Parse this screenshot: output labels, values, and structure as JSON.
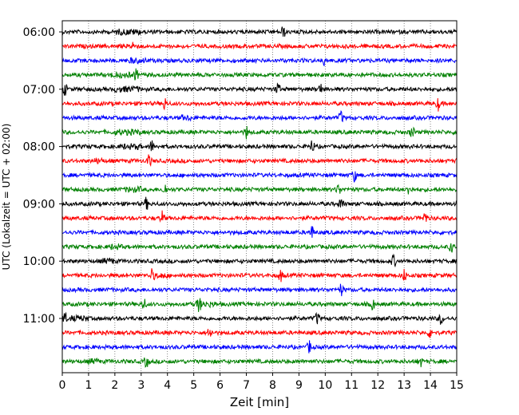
{
  "chart_data": {
    "type": "line",
    "title": "",
    "xlabel": "Zeit  [min]",
    "ylabel": "UTC (Lokalzeit = UTC + 02:00)",
    "xlim": [
      0,
      15
    ],
    "x_ticks": [
      "0",
      "1",
      "2",
      "3",
      "4",
      "5",
      "6",
      "7",
      "8",
      "9",
      "10",
      "11",
      "12",
      "13",
      "14",
      "15"
    ],
    "y_ticks": [
      "06:00",
      "07:00",
      "08:00",
      "09:00",
      "10:00",
      "11:00"
    ],
    "grid": "vertical dotted lines at each minute",
    "trace_interval_min": 15,
    "start_time": "06:00",
    "color_cycle": [
      "#000000",
      "#ff0000",
      "#0000ff",
      "#008000"
    ],
    "traces": [
      {
        "label": "06:00",
        "events": [
          8.4
        ],
        "noisy": [
          [
            2.0,
            3.0
          ]
        ]
      },
      {
        "label": "06:15",
        "events": [
          2.7
        ],
        "noisy": []
      },
      {
        "label": "06:30",
        "events": [
          10.0
        ],
        "noisy": [
          [
            2.5,
            3.2
          ]
        ]
      },
      {
        "label": "06:45",
        "events": [
          2.8
        ],
        "noisy": [
          [
            1.8,
            2.6
          ]
        ]
      },
      {
        "label": "07:00",
        "events": [
          0.1,
          8.2,
          9.8
        ],
        "noisy": [
          [
            2.0,
            3.0
          ]
        ]
      },
      {
        "label": "07:15",
        "events": [
          3.9,
          14.3
        ],
        "noisy": []
      },
      {
        "label": "07:30",
        "events": [
          10.6
        ],
        "noisy": [
          [
            4.5,
            4.9
          ]
        ]
      },
      {
        "label": "07:45",
        "events": [
          7.0,
          13.3
        ],
        "noisy": [
          [
            2.0,
            3.0
          ]
        ]
      },
      {
        "label": "08:00",
        "events": [
          3.4,
          9.5
        ],
        "noisy": [
          [
            2.2,
            3.0
          ]
        ]
      },
      {
        "label": "08:15",
        "events": [
          3.3
        ],
        "noisy": [
          [
            1.2,
            1.6
          ]
        ]
      },
      {
        "label": "08:30",
        "events": [
          11.1
        ],
        "noisy": []
      },
      {
        "label": "08:45",
        "events": [
          3.9,
          10.5,
          13.2
        ],
        "noisy": [
          [
            2.4,
            3.0
          ]
        ]
      },
      {
        "label": "09:00",
        "events": [
          3.2,
          10.6
        ],
        "noisy": []
      },
      {
        "label": "09:15",
        "events": [
          3.8,
          13.8
        ],
        "noisy": []
      },
      {
        "label": "09:30",
        "events": [
          9.5
        ],
        "noisy": []
      },
      {
        "label": "09:45",
        "events": [
          14.8
        ],
        "noisy": [
          [
            1.8,
            2.3
          ]
        ]
      },
      {
        "label": "10:00",
        "events": [
          12.6
        ],
        "noisy": [
          [
            1.5,
            2.0
          ]
        ]
      },
      {
        "label": "10:15",
        "events": [
          3.4,
          8.3,
          13.0
        ],
        "noisy": [
          [
            3.5,
            4.0
          ]
        ]
      },
      {
        "label": "10:30",
        "events": [
          10.6
        ],
        "noisy": []
      },
      {
        "label": "10:45",
        "events": [
          3.1,
          5.2,
          11.8
        ],
        "noisy": [
          [
            5.0,
            5.8
          ]
        ]
      },
      {
        "label": "11:00",
        "events": [
          0.1,
          9.7,
          14.4
        ],
        "noisy": [
          [
            0.3,
            1.0
          ]
        ]
      },
      {
        "label": "11:15",
        "events": [
          5.6,
          14.0
        ],
        "noisy": []
      },
      {
        "label": "11:30",
        "events": [
          9.4
        ],
        "noisy": []
      },
      {
        "label": "11:45",
        "events": [
          3.2,
          13.6
        ],
        "noisy": [
          [
            1.0,
            1.4
          ]
        ]
      }
    ]
  }
}
